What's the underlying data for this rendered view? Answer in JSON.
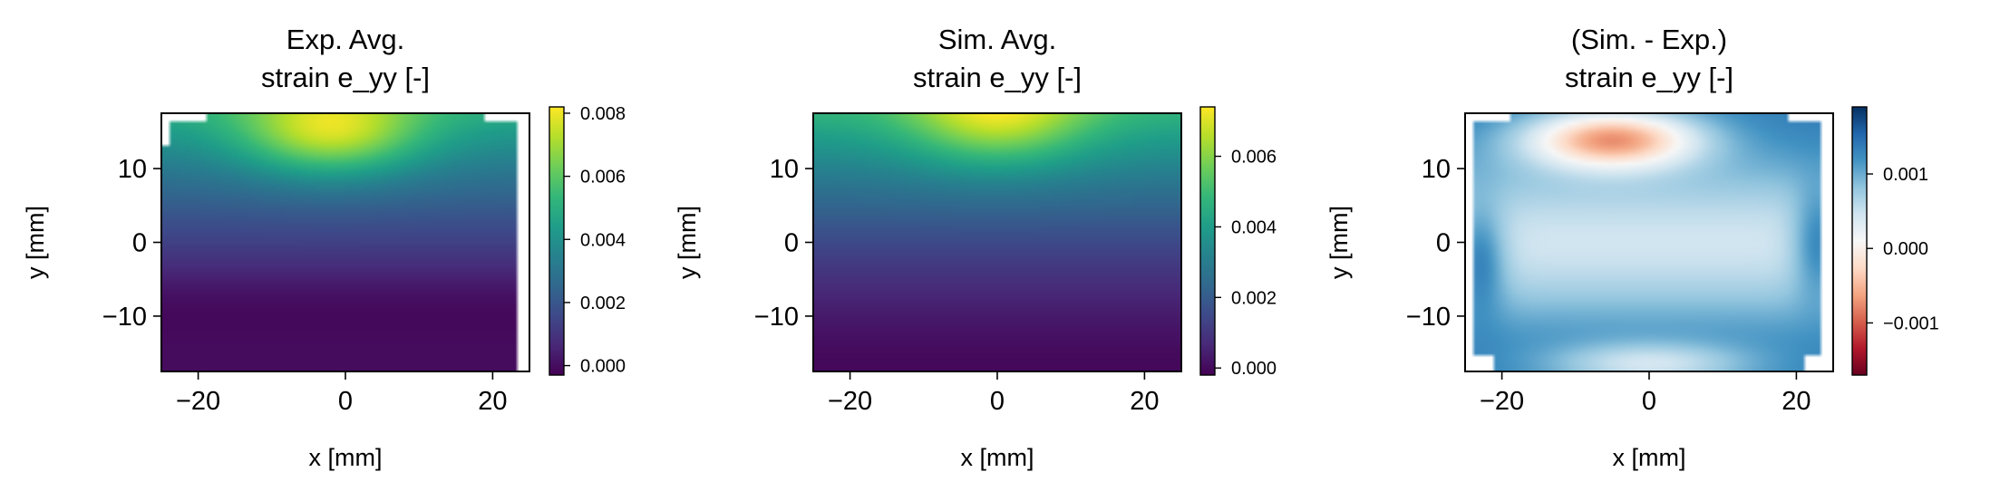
{
  "chart_data": [
    {
      "type": "heatmap",
      "title_line1": "Exp. Avg.",
      "title_line2": "strain e_yy [-]",
      "xlabel": "x [mm]",
      "ylabel": "y [mm]",
      "xlim": [
        -25,
        25
      ],
      "ylim": [
        -17.5,
        17.5
      ],
      "xticks": [
        -20,
        0,
        20
      ],
      "xtick_labels": [
        "−20",
        "0",
        "20"
      ],
      "yticks": [
        -10,
        0,
        10
      ],
      "ytick_labels": [
        "−10",
        "0",
        "10"
      ],
      "colormap": "viridis",
      "colorbar": {
        "range": [
          -0.0003,
          0.0082
        ],
        "ticks": [
          0.0,
          0.002,
          0.004,
          0.006,
          0.008
        ],
        "tick_labels": [
          "0.000",
          "0.002",
          "0.004",
          "0.006",
          "0.008"
        ]
      },
      "field": {
        "peak": [
          -2,
          15
        ],
        "peak_value": 0.0082,
        "low_value": -0.0003,
        "pattern": "exp"
      }
    },
    {
      "type": "heatmap",
      "title_line1": "Sim. Avg.",
      "title_line2": "strain e_yy [-]",
      "xlabel": "x [mm]",
      "ylabel": "y [mm]",
      "xlim": [
        -25,
        25
      ],
      "ylim": [
        -17.5,
        17.5
      ],
      "xticks": [
        -20,
        0,
        20
      ],
      "xtick_labels": [
        "−20",
        "0",
        "20"
      ],
      "yticks": [
        -10,
        0,
        10
      ],
      "ytick_labels": [
        "−10",
        "0",
        "10"
      ],
      "colormap": "viridis",
      "colorbar": {
        "range": [
          -0.0002,
          0.0074
        ],
        "ticks": [
          0.0,
          0.002,
          0.004,
          0.006
        ],
        "tick_labels": [
          "0.000",
          "0.002",
          "0.004",
          "0.006"
        ]
      },
      "field": {
        "peak": [
          0,
          17.5
        ],
        "peak_value": 0.0074,
        "low_value": -0.0002,
        "pattern": "sim"
      }
    },
    {
      "type": "heatmap",
      "title_line1": "(Sim. - Exp.)",
      "title_line2": "strain e_yy [-]",
      "xlabel": "x [mm]",
      "ylabel": "y [mm]",
      "xlim": [
        -25,
        25
      ],
      "ylim": [
        -17.5,
        17.5
      ],
      "xticks": [
        -20,
        0,
        20
      ],
      "xtick_labels": [
        "−20",
        "0",
        "20"
      ],
      "yticks": [
        -10,
        0,
        10
      ],
      "ytick_labels": [
        "−10",
        "0",
        "10"
      ],
      "colormap": "RdBu",
      "colorbar": {
        "range": [
          -0.0017,
          0.0019
        ],
        "ticks": [
          -0.001,
          0.0,
          0.001
        ],
        "tick_labels": [
          "−0.001",
          "0.000",
          "0.001"
        ]
      },
      "field": {
        "peak": [
          -5,
          14
        ],
        "peak_value": -0.0017,
        "low_value": 0.0019,
        "pattern": "diff"
      }
    }
  ]
}
